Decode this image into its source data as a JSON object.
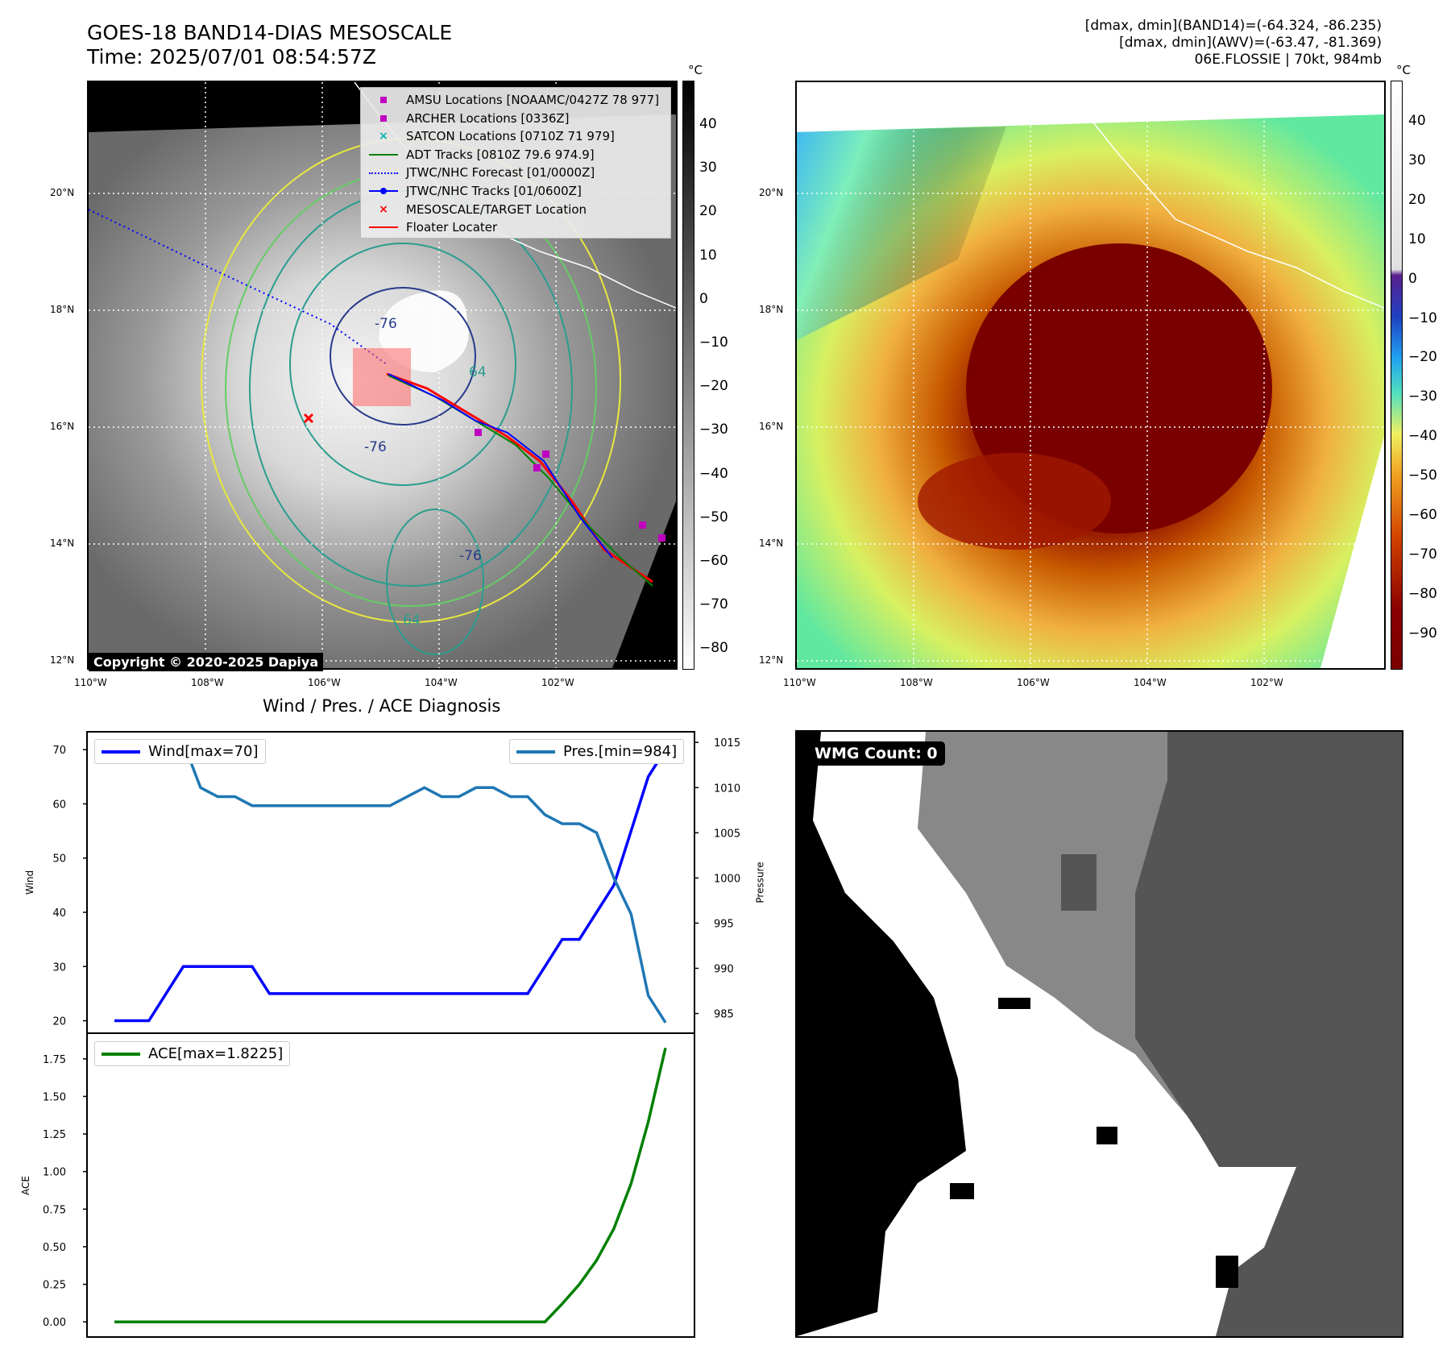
{
  "header": {
    "title_line1": "GOES-18 BAND14-DIAS MESOSCALE",
    "title_line2": "Time: 2025/07/01 08:54:57Z",
    "info_line1": "[dmax, dmin](BAND14)=(-64.324, -86.235)",
    "info_line2": "[dmax, dmin](AWV)=(-63.47, -81.369)",
    "info_line3": "06E.FLOSSIE | 70kt, 984mb"
  },
  "map": {
    "lon_labels": [
      "110°W",
      "108°W",
      "106°W",
      "104°W",
      "102°W"
    ],
    "lat_labels": [
      "20°N",
      "18°N",
      "16°N",
      "14°N",
      "12°N"
    ],
    "copyright": "Copyright © 2020-2025 Dapiya",
    "contour_labels": [
      "-76",
      "-76",
      "-76",
      "64",
      "64"
    ],
    "legend": [
      {
        "label": "AMSU Locations [NOAAMC/0427Z 78 977]",
        "symbol": "square",
        "color": "#c000c0"
      },
      {
        "label": "ARCHER Locations [0336Z]",
        "symbol": "square",
        "color": "#c000c0"
      },
      {
        "label": "SATCON Locations [0710Z 71 979]",
        "symbol": "x",
        "color": "#00b0b0"
      },
      {
        "label": "ADT Tracks [0810Z 79.6 974.9]",
        "symbol": "line",
        "color": "#008000"
      },
      {
        "label": "JTWC/NHC Forecast [01/0000Z]",
        "symbol": "dotted",
        "color": "#0000ff"
      },
      {
        "label": "JTWC/NHC Tracks [01/0600Z]",
        "symbol": "line-dot",
        "color": "#0000ff"
      },
      {
        "label": "MESOSCALE/TARGET Location",
        "symbol": "x",
        "color": "#ff0000"
      },
      {
        "label": "Floater Locater",
        "symbol": "line",
        "color": "#ff0000"
      }
    ]
  },
  "colorbar_gray": {
    "unit": "°C",
    "ticks": [
      "40",
      "30",
      "20",
      "10",
      "0",
      "−10",
      "−20",
      "−30",
      "−40",
      "−50",
      "−60",
      "−70",
      "−80"
    ]
  },
  "colorbar_color": {
    "unit": "°C",
    "ticks": [
      "40",
      "30",
      "20",
      "10",
      "0",
      "−10",
      "−20",
      "−30",
      "−40",
      "−50",
      "−60",
      "−70",
      "−80",
      "−90"
    ]
  },
  "chart_data": [
    {
      "type": "line",
      "title": "Wind / Pres. / ACE Diagnosis",
      "ylabel": "Wind",
      "ylabel_right": "Pressure",
      "ylim": [
        18,
        73
      ],
      "ylim_right": [
        983,
        1016
      ],
      "yticks": [
        "70",
        "60",
        "50",
        "40",
        "30",
        "20"
      ],
      "yticks_right": [
        "1015",
        "1010",
        "1005",
        "1000",
        "995",
        "990",
        "985"
      ],
      "series": [
        {
          "name": "Wind[max=70]",
          "axis": "left",
          "color": "#0000ff",
          "values": [
            20,
            20,
            20,
            25,
            30,
            30,
            30,
            30,
            30,
            25,
            25,
            25,
            25,
            25,
            25,
            25,
            25,
            25,
            25,
            25,
            25,
            25,
            25,
            25,
            25,
            30,
            35,
            35,
            40,
            45,
            55,
            65,
            70
          ]
        },
        {
          "name": "Pres.[min=984]",
          "axis": "right",
          "color": "#1f77b4",
          "values": [
            1015,
            1015,
            1015,
            1015,
            1015,
            1010,
            1009,
            1009,
            1008,
            1008,
            1008,
            1008,
            1008,
            1008,
            1008,
            1008,
            1008,
            1009,
            1010,
            1009,
            1009,
            1010,
            1010,
            1009,
            1009,
            1007,
            1006,
            1006,
            1005,
            1000,
            996,
            987,
            984
          ]
        }
      ]
    },
    {
      "type": "line",
      "ylabel": "ACE",
      "ylim": [
        -0.09,
        1.91
      ],
      "yticks": [
        "1.75",
        "1.50",
        "1.25",
        "1.00",
        "0.75",
        "0.50",
        "0.25",
        "0.00"
      ],
      "series": [
        {
          "name": "ACE[max=1.8225]",
          "color": "#008000",
          "values": [
            0,
            0,
            0,
            0,
            0,
            0,
            0,
            0,
            0,
            0,
            0,
            0,
            0,
            0,
            0,
            0,
            0,
            0,
            0,
            0,
            0,
            0,
            0,
            0,
            0,
            0,
            0.12,
            0.25,
            0.41,
            0.62,
            0.92,
            1.33,
            1.8225
          ]
        }
      ]
    }
  ],
  "wmg": {
    "label": "WMG Count: 0"
  }
}
